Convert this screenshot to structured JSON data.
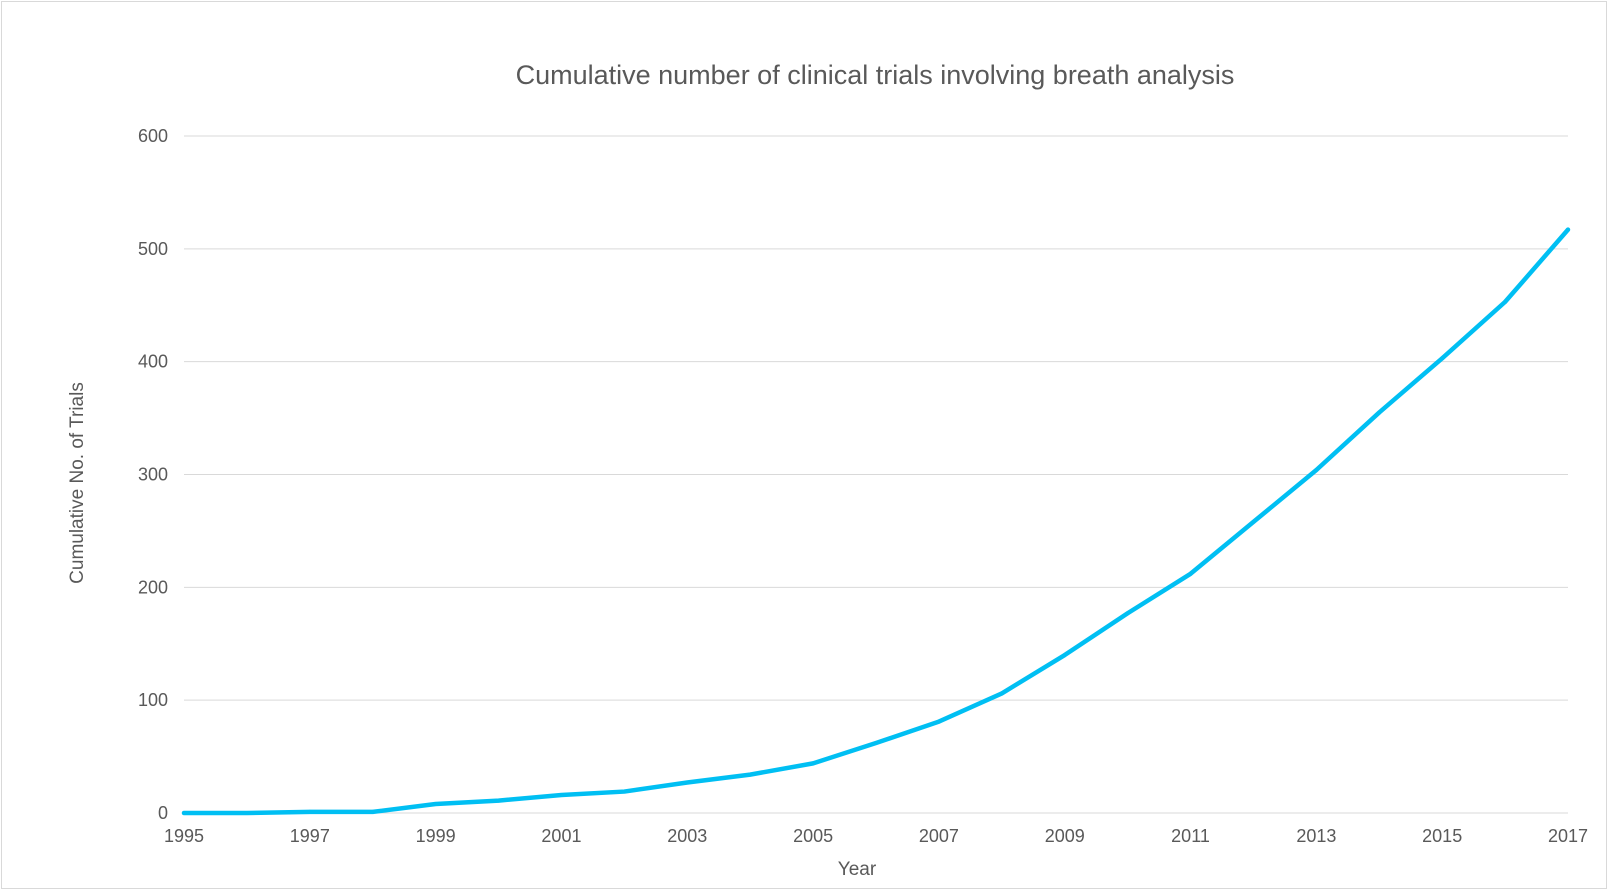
{
  "chart_data": {
    "type": "line",
    "title": "Cumulative number of clinical trials involving breath analysis",
    "xlabel": "Year",
    "ylabel": "Cumulative No. of Trials",
    "x": [
      1995,
      1996,
      1997,
      1998,
      1999,
      2000,
      2001,
      2002,
      2003,
      2004,
      2005,
      2006,
      2007,
      2008,
      2009,
      2010,
      2011,
      2012,
      2013,
      2014,
      2015,
      2016,
      2017
    ],
    "series": [
      {
        "values": [
          0,
          0,
          1,
          1,
          8,
          11,
          16,
          19,
          27,
          34,
          44,
          62,
          81,
          106,
          140,
          177,
          212,
          258,
          304,
          355,
          403,
          453,
          517
        ],
        "color": "#00bff3"
      }
    ],
    "x_tick_labels": [
      "1995",
      "1997",
      "1999",
      "2001",
      "2003",
      "2005",
      "2007",
      "2009",
      "2011",
      "2013",
      "2015",
      "2017"
    ],
    "y_tick_labels": [
      "0",
      "100",
      "200",
      "300",
      "400",
      "500",
      "600"
    ],
    "xlim": [
      1995,
      2017
    ],
    "ylim": [
      0,
      600
    ],
    "grid": true,
    "legend": "none"
  }
}
